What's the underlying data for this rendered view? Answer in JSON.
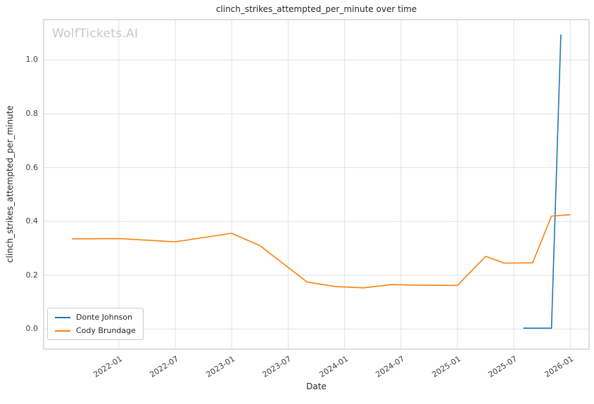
{
  "watermark": "WolfTickets.AI",
  "colors": {
    "series_blue": "#1f77b4",
    "series_orange": "#ff7f0e",
    "grid": "#e1e1e1",
    "spine": "#c9c9c9",
    "text": "#262626",
    "tick_text": "#3d3d3d",
    "watermark": "#c8c8c8"
  },
  "chart_data": {
    "type": "line",
    "title": "clinch_strikes_attempted_per_minute over time",
    "xlabel": "Date",
    "ylabel": "clinch_strikes_attempted_per_minute",
    "grid": true,
    "legend_position": "lower left",
    "x_ticks": [
      "2022-01",
      "2022-07",
      "2023-01",
      "2023-07",
      "2024-01",
      "2024-07",
      "2025-01",
      "2025-07",
      "2026-01"
    ],
    "y_ticks": [
      0.0,
      0.2,
      0.4,
      0.6,
      0.8,
      1.0
    ],
    "x_domain": [
      "2021-05",
      "2026-03"
    ],
    "ylim": [
      -0.075,
      1.15
    ],
    "series": [
      {
        "name": "Donte Johnson",
        "color": "#1f77b4",
        "points": [
          [
            "2025-08",
            0.003
          ],
          [
            "2025-11",
            0.003
          ],
          [
            "2025-12",
            1.095
          ]
        ]
      },
      {
        "name": "Cody Brundage",
        "color": "#ff7f0e",
        "points": [
          [
            "2021-08",
            0.335
          ],
          [
            "2022-01",
            0.336
          ],
          [
            "2022-07",
            0.324
          ],
          [
            "2023-01",
            0.356
          ],
          [
            "2023-04",
            0.31
          ],
          [
            "2023-09",
            0.175
          ],
          [
            "2023-12",
            0.158
          ],
          [
            "2024-03",
            0.153
          ],
          [
            "2024-06",
            0.165
          ],
          [
            "2024-09",
            0.163
          ],
          [
            "2025-01",
            0.162
          ],
          [
            "2025-04",
            0.27
          ],
          [
            "2025-06",
            0.245
          ],
          [
            "2025-09",
            0.246
          ],
          [
            "2025-11",
            0.42
          ],
          [
            "2026-01",
            0.425
          ]
        ]
      }
    ]
  }
}
